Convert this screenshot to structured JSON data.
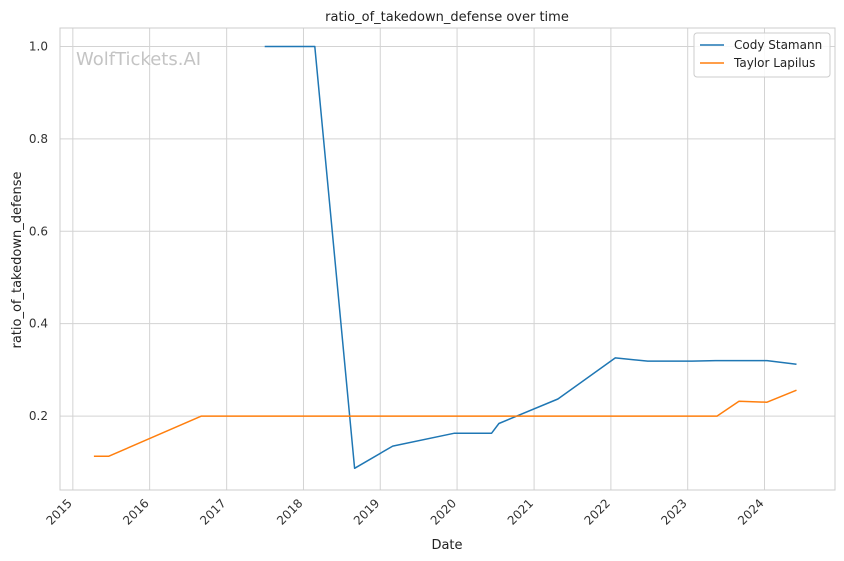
{
  "chart_data": {
    "type": "line",
    "title": "ratio_of_takedown_defense over time",
    "xlabel": "Date",
    "ylabel": "ratio_of_takedown_defense",
    "watermark": "WolfTickets.AI",
    "x_range": [
      "2014-11-01",
      "2024-12-01"
    ],
    "ylim": [
      0.04,
      1.04
    ],
    "x_ticks": [
      "2015",
      "2016",
      "2017",
      "2018",
      "2019",
      "2020",
      "2021",
      "2022",
      "2023",
      "2024"
    ],
    "y_ticks": [
      "0.2",
      "0.4",
      "0.6",
      "0.8",
      "1.0"
    ],
    "grid": true,
    "legend_position": "top-right",
    "series": [
      {
        "name": "Cody Stamann",
        "color": "#1f77b4",
        "points": [
          [
            "2017-07-01",
            1.0
          ],
          [
            "2018-02-24",
            1.0
          ],
          [
            "2018-09-01",
            0.087
          ],
          [
            "2019-03-01",
            0.135
          ],
          [
            "2019-12-20",
            0.163
          ],
          [
            "2020-06-13",
            0.163
          ],
          [
            "2020-07-18",
            0.184
          ],
          [
            "2021-04-24",
            0.237
          ],
          [
            "2022-01-22",
            0.326
          ],
          [
            "2022-06-25",
            0.319
          ],
          [
            "2023-01-21",
            0.319
          ],
          [
            "2023-05-13",
            0.32
          ],
          [
            "2024-01-13",
            0.32
          ],
          [
            "2024-06-01",
            0.312
          ]
        ]
      },
      {
        "name": "Taylor Lapilus",
        "color": "#ff7f0e",
        "points": [
          [
            "2015-04-11",
            0.113
          ],
          [
            "2015-06-20",
            0.113
          ],
          [
            "2016-09-03",
            0.2
          ],
          [
            "2023-05-20",
            0.2
          ],
          [
            "2023-09-02",
            0.232
          ],
          [
            "2024-01-13",
            0.23
          ],
          [
            "2024-06-01",
            0.256
          ]
        ]
      }
    ]
  }
}
